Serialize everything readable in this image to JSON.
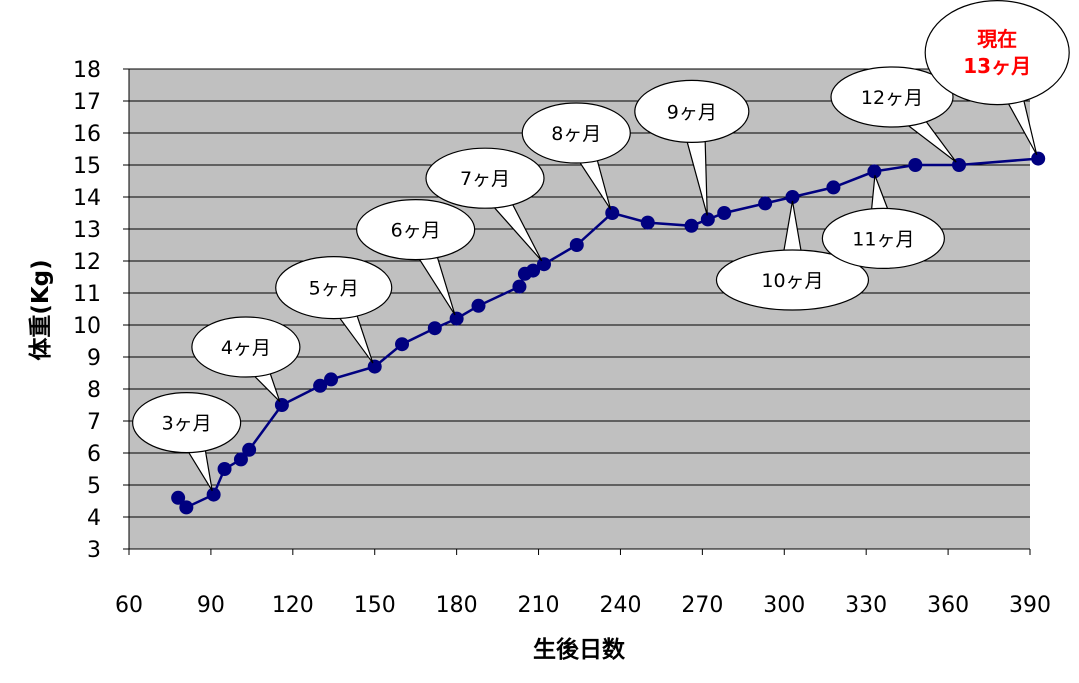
{
  "chart_data": {
    "type": "line",
    "xlabel": "生後日数",
    "ylabel": "体重(Kg)",
    "xlim": [
      60,
      390
    ],
    "xticks": [
      60,
      90,
      120,
      150,
      180,
      210,
      240,
      270,
      300,
      330,
      360,
      390
    ],
    "ylim": [
      3,
      18
    ],
    "yticks": [
      3,
      4,
      5,
      6,
      7,
      8,
      9,
      10,
      11,
      12,
      13,
      14,
      15,
      16,
      17,
      18
    ],
    "grid": true,
    "plot_background": "#c0c0c0",
    "series": [
      {
        "color": "#000080",
        "x": [
          78,
          81,
          91,
          95,
          101,
          104,
          116,
          130,
          134,
          150,
          160,
          172,
          180,
          188,
          203,
          205,
          208,
          212,
          224,
          237,
          250,
          266,
          272,
          278,
          293,
          303,
          318,
          333,
          348,
          364,
          393
        ],
        "y": [
          4.6,
          4.3,
          4.7,
          5.5,
          5.8,
          6.1,
          7.5,
          8.1,
          8.3,
          8.7,
          9.4,
          9.9,
          10.2,
          10.6,
          11.2,
          11.6,
          11.7,
          11.9,
          12.5,
          13.5,
          13.2,
          13.1,
          13.3,
          13.5,
          13.8,
          14.0,
          14.3,
          14.8,
          15.0,
          15.0,
          15.2
        ]
      }
    ],
    "annotations": [
      {
        "text": "3ヶ月",
        "point_x": 91,
        "point_y": 4.7
      },
      {
        "text": "4ヶ月",
        "point_x": 116,
        "point_y": 7.5
      },
      {
        "text": "5ヶ月",
        "point_x": 150,
        "point_y": 8.7
      },
      {
        "text": "6ヶ月",
        "point_x": 180,
        "point_y": 10.2
      },
      {
        "text": "7ヶ月",
        "point_x": 212,
        "point_y": 11.9
      },
      {
        "text": "8ヶ月",
        "point_x": 237,
        "point_y": 13.5
      },
      {
        "text": "9ヶ月",
        "point_x": 272,
        "point_y": 13.3
      },
      {
        "text": "10ヶ月",
        "point_x": 303,
        "point_y": 14.0
      },
      {
        "text": "11ヶ月",
        "point_x": 333,
        "point_y": 14.8
      },
      {
        "text": "12ヶ月",
        "point_x": 364,
        "point_y": 15.0
      },
      {
        "text": "現在\n13ヶ月",
        "point_x": 393,
        "point_y": 15.2,
        "highlight_color": "#ff0000"
      }
    ]
  }
}
